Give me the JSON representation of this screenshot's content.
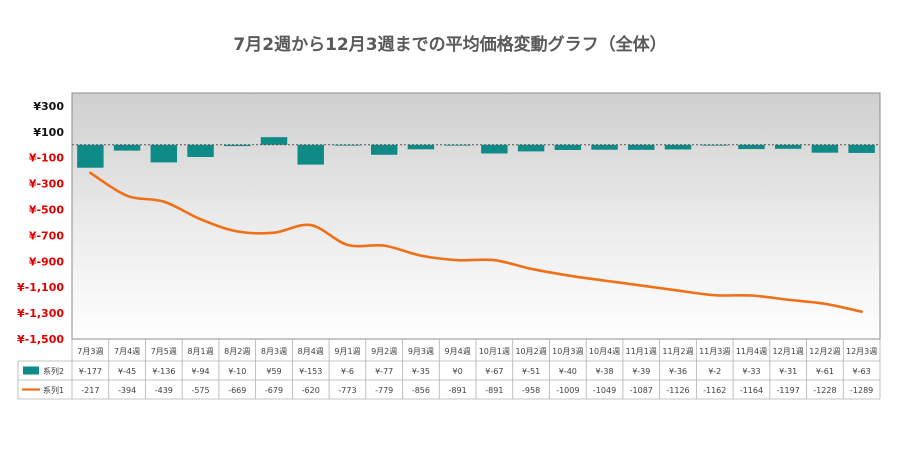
{
  "chart_data": {
    "type": "bar",
    "title": "7月2週から12月3週までの平均価格変動グラフ（全体）",
    "categories": [
      "7月3週",
      "7月4週",
      "7月5週",
      "8月1週",
      "8月2週",
      "8月3週",
      "8月4週",
      "9月1週",
      "9月2週",
      "9月3週",
      "9月4週",
      "10月1週",
      "10月2週",
      "10月3週",
      "10月4週",
      "11月1週",
      "11月2週",
      "11月3週",
      "11月4週",
      "12月1週",
      "12月2週",
      "12月3週"
    ],
    "series": [
      {
        "name": "系列2",
        "kind": "bar",
        "color": "#0e8a87",
        "values": [
          -177,
          -45,
          -136,
          -94,
          -10,
          59,
          -153,
          -6,
          -77,
          -35,
          0,
          -67,
          -51,
          -40,
          -38,
          -39,
          -36,
          -2,
          -33,
          -31,
          -61,
          -63
        ],
        "labels": [
          "¥-177",
          "¥-45",
          "¥-136",
          "¥-94",
          "¥-10",
          "¥59",
          "¥-153",
          "¥-6",
          "¥-77",
          "¥-35",
          "¥0",
          "¥-67",
          "¥-51",
          "¥-40",
          "¥-38",
          "¥-39",
          "¥-36",
          "¥-2",
          "¥-33",
          "¥-31",
          "¥-61",
          "¥-63"
        ]
      },
      {
        "name": "系列1",
        "kind": "line",
        "color": "#f07018",
        "values": [
          -217,
          -394,
          -439,
          -575,
          -669,
          -679,
          -620,
          -773,
          -779,
          -856,
          -891,
          -891,
          -958,
          -1009,
          -1049,
          -1087,
          -1126,
          -1162,
          -1164,
          -1197,
          -1228,
          -1289
        ],
        "labels": [
          "-217",
          "-394",
          "-439",
          "-575",
          "-669",
          "-679",
          "-620",
          "-773",
          "-779",
          "-856",
          "-891",
          "-891",
          "-958",
          "-1009",
          "-1049",
          "-1087",
          "-1126",
          "-1162",
          "-1164",
          "-1197",
          "-1228",
          "-1289"
        ]
      }
    ],
    "y_ticks": [
      {
        "value": 300,
        "label": "¥300",
        "color": "#111111"
      },
      {
        "value": 100,
        "label": "¥100",
        "color": "#111111"
      },
      {
        "value": -100,
        "label": "¥-100",
        "color": "#e00000"
      },
      {
        "value": -300,
        "label": "¥-300",
        "color": "#e00000"
      },
      {
        "value": -500,
        "label": "¥-500",
        "color": "#e00000"
      },
      {
        "value": -700,
        "label": "¥-700",
        "color": "#e00000"
      },
      {
        "value": -900,
        "label": "¥-900",
        "color": "#e00000"
      },
      {
        "value": -1100,
        "label": "¥-1,100",
        "color": "#e00000"
      },
      {
        "value": -1300,
        "label": "¥-1,300",
        "color": "#e00000"
      },
      {
        "value": -1500,
        "label": "¥-1,500",
        "color": "#e00000"
      }
    ],
    "ylim": [
      -1500,
      400
    ],
    "zero_line": "dotted",
    "legend": "data-table",
    "grid": false
  }
}
